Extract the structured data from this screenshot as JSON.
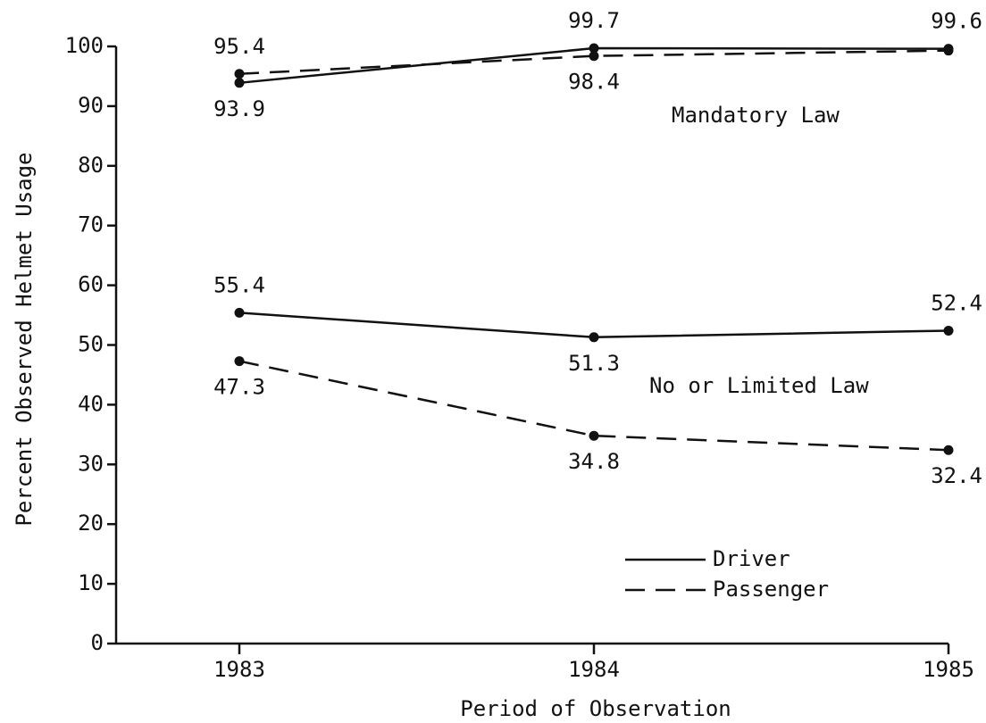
{
  "chart_data": {
    "type": "line",
    "xlabel": "Period of Observation",
    "ylabel": "Percent Observed Helmet Usage",
    "categories": [
      "1983",
      "1984",
      "1985"
    ],
    "ylim": [
      0,
      100
    ],
    "yticks": [
      0,
      10,
      20,
      30,
      40,
      50,
      60,
      70,
      80,
      90,
      100
    ],
    "color": "#111111",
    "legend": [
      {
        "name": "Driver",
        "dash": "solid"
      },
      {
        "name": "Passenger",
        "dash": "dashed"
      }
    ],
    "annotations": [
      "Mandatory Law",
      "No or Limited Law"
    ],
    "series": [
      {
        "dash": "solid",
        "values": [
          93.9,
          99.7,
          99.6
        ],
        "value_labels": [
          "93.9",
          "99.7",
          "99.6"
        ]
      },
      {
        "dash": "dashed",
        "values": [
          95.4,
          98.4,
          99.3
        ],
        "value_labels": [
          "95.4",
          "98.4",
          null
        ]
      },
      {
        "dash": "solid",
        "values": [
          55.4,
          51.3,
          52.4
        ],
        "value_labels": [
          "55.4",
          "51.3",
          "52.4"
        ]
      },
      {
        "dash": "dashed",
        "values": [
          47.3,
          34.8,
          32.4
        ],
        "value_labels": [
          "47.3",
          "34.8",
          "32.4"
        ]
      }
    ]
  }
}
